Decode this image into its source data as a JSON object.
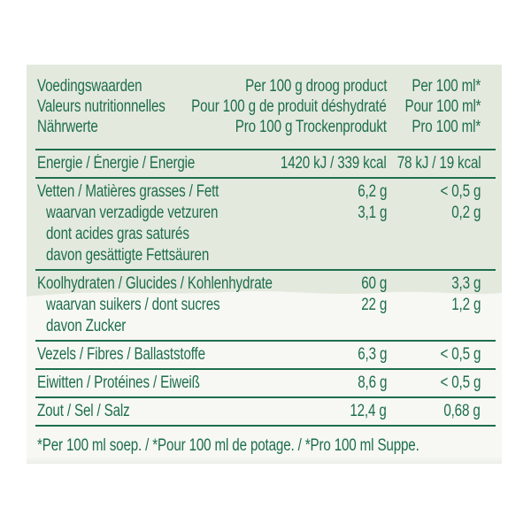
{
  "colors": {
    "text_green": "#1e6e4b",
    "rule_green": "#1f6f4c",
    "background_top": "#e4e9de",
    "background_bottom": "#f7f8f4",
    "page_background": "#ffffff"
  },
  "header": {
    "col1": [
      "Voedingswaarden",
      "Valeurs nutritionnelles",
      "Nährwerte"
    ],
    "col2": [
      "Per 100 g droog product",
      "Pour 100 g de produit déshydraté",
      "Pro 100 g Trockenprodukt"
    ],
    "col3": [
      "Per 100 ml*",
      "Pour 100 ml*",
      "Pro 100 ml*"
    ]
  },
  "sections": [
    {
      "lines": [
        {
          "label": "Energie / Énergie / Energie",
          "indent": false,
          "per100g": "1420 kJ / 339 kcal",
          "per100ml": "78 kJ / 19 kcal"
        }
      ]
    },
    {
      "lines": [
        {
          "label": "Vetten / Matières grasses / Fett",
          "indent": false,
          "per100g": "6,2 g",
          "per100ml": "< 0,5 g"
        },
        {
          "label": "waarvan verzadigde vetzuren",
          "indent": true,
          "per100g": "3,1 g",
          "per100ml": "0,2 g"
        },
        {
          "label": "dont acides gras saturés",
          "indent": true,
          "per100g": "",
          "per100ml": ""
        },
        {
          "label": "davon gesättigte Fettsäuren",
          "indent": true,
          "per100g": "",
          "per100ml": ""
        }
      ]
    },
    {
      "lines": [
        {
          "label": "Koolhydraten / Glucides / Kohlenhydrate",
          "indent": false,
          "per100g": "60 g",
          "per100ml": "3,3 g"
        },
        {
          "label": "waarvan suikers / dont sucres",
          "indent": true,
          "per100g": "22 g",
          "per100ml": "1,2 g"
        },
        {
          "label": "davon Zucker",
          "indent": true,
          "per100g": "",
          "per100ml": ""
        }
      ]
    },
    {
      "lines": [
        {
          "label": "Vezels / Fibres / Ballaststoffe",
          "indent": false,
          "per100g": "6,3 g",
          "per100ml": "< 0,5 g"
        }
      ]
    },
    {
      "lines": [
        {
          "label": "Eiwitten / Protéines / Eiweiß",
          "indent": false,
          "per100g": "8,6 g",
          "per100ml": "< 0,5 g"
        }
      ]
    },
    {
      "lines": [
        {
          "label": "Zout / Sel / Salz",
          "indent": false,
          "per100g": "12,4 g",
          "per100ml": "0,68 g"
        }
      ]
    }
  ],
  "footnote": "*Per 100 ml soep. / *Pour 100 ml de potage. / *Pro 100 ml Suppe."
}
